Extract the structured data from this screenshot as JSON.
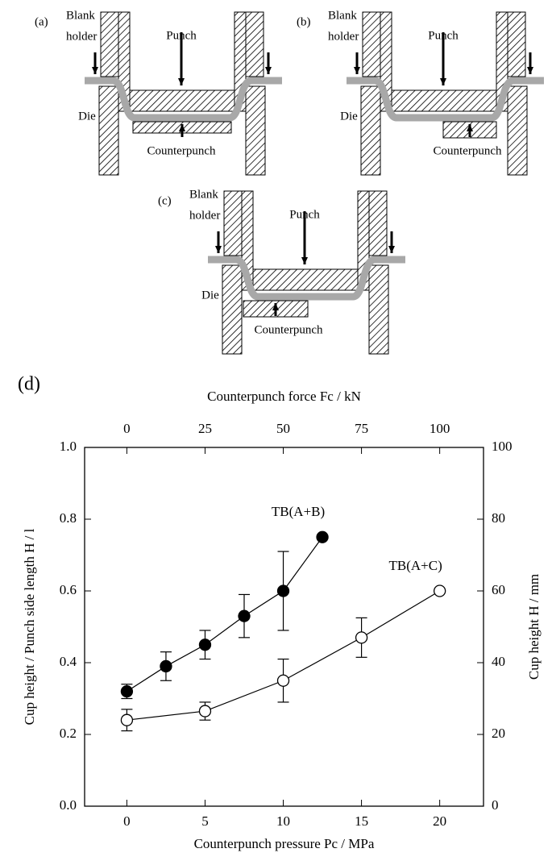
{
  "diagrams": [
    {
      "label": "(a)",
      "blank_holder": [
        "Blank",
        "holder"
      ],
      "punch": "Punch",
      "die": "Die",
      "counterpunch": "Counterpunch"
    },
    {
      "label": "(b)",
      "blank_holder": [
        "Blank",
        "holder"
      ],
      "punch": "Punch",
      "die": "Die",
      "counterpunch": "Counterpunch"
    },
    {
      "label": "(c)",
      "blank_holder": [
        "Blank",
        "holder"
      ],
      "punch": "Punch",
      "die": "Die",
      "counterpunch": "Counterpunch"
    }
  ],
  "chart_data": {
    "type": "line",
    "panel_label": "(d)",
    "xlabel": "Counterpunch pressure Pc / MPa",
    "x2label": "Counterpunch force Fc / kN",
    "ylabel": "Cup height / Punch side length H / l",
    "y2label": "Cup height H / mm",
    "xlim": [
      -2.7,
      22.8
    ],
    "xticks": [
      0,
      5,
      10,
      15,
      20
    ],
    "x2lim": [
      -13.5,
      114
    ],
    "x2ticks": [
      0,
      25,
      50,
      75,
      100
    ],
    "ylim": [
      0,
      1
    ],
    "yticks": [
      {
        "value": 0,
        "label": "0.0"
      },
      0.2,
      0.4,
      0.6,
      0.8,
      {
        "value": 1,
        "label": "1.0"
      }
    ],
    "y2lim": [
      0,
      100
    ],
    "y2ticks": [
      0,
      20,
      40,
      60,
      80,
      100
    ],
    "series": [
      {
        "name": "TB(A+B)",
        "color": "#000000",
        "filled": true,
        "x": [
          0,
          2.5,
          5,
          7.5,
          10,
          12.5
        ],
        "values": [
          0.32,
          0.39,
          0.45,
          0.53,
          0.6,
          0.75
        ],
        "errors": [
          0.02,
          0.04,
          0.04,
          0.06,
          0.11,
          null
        ]
      },
      {
        "name": "TB(A+C)",
        "color": "#000000",
        "filled": false,
        "x": [
          0,
          5,
          10,
          15,
          20
        ],
        "values": [
          0.24,
          0.265,
          0.35,
          0.47,
          0.6
        ],
        "errors": [
          0.03,
          0.025,
          0.06,
          0.055,
          null
        ]
      }
    ]
  }
}
